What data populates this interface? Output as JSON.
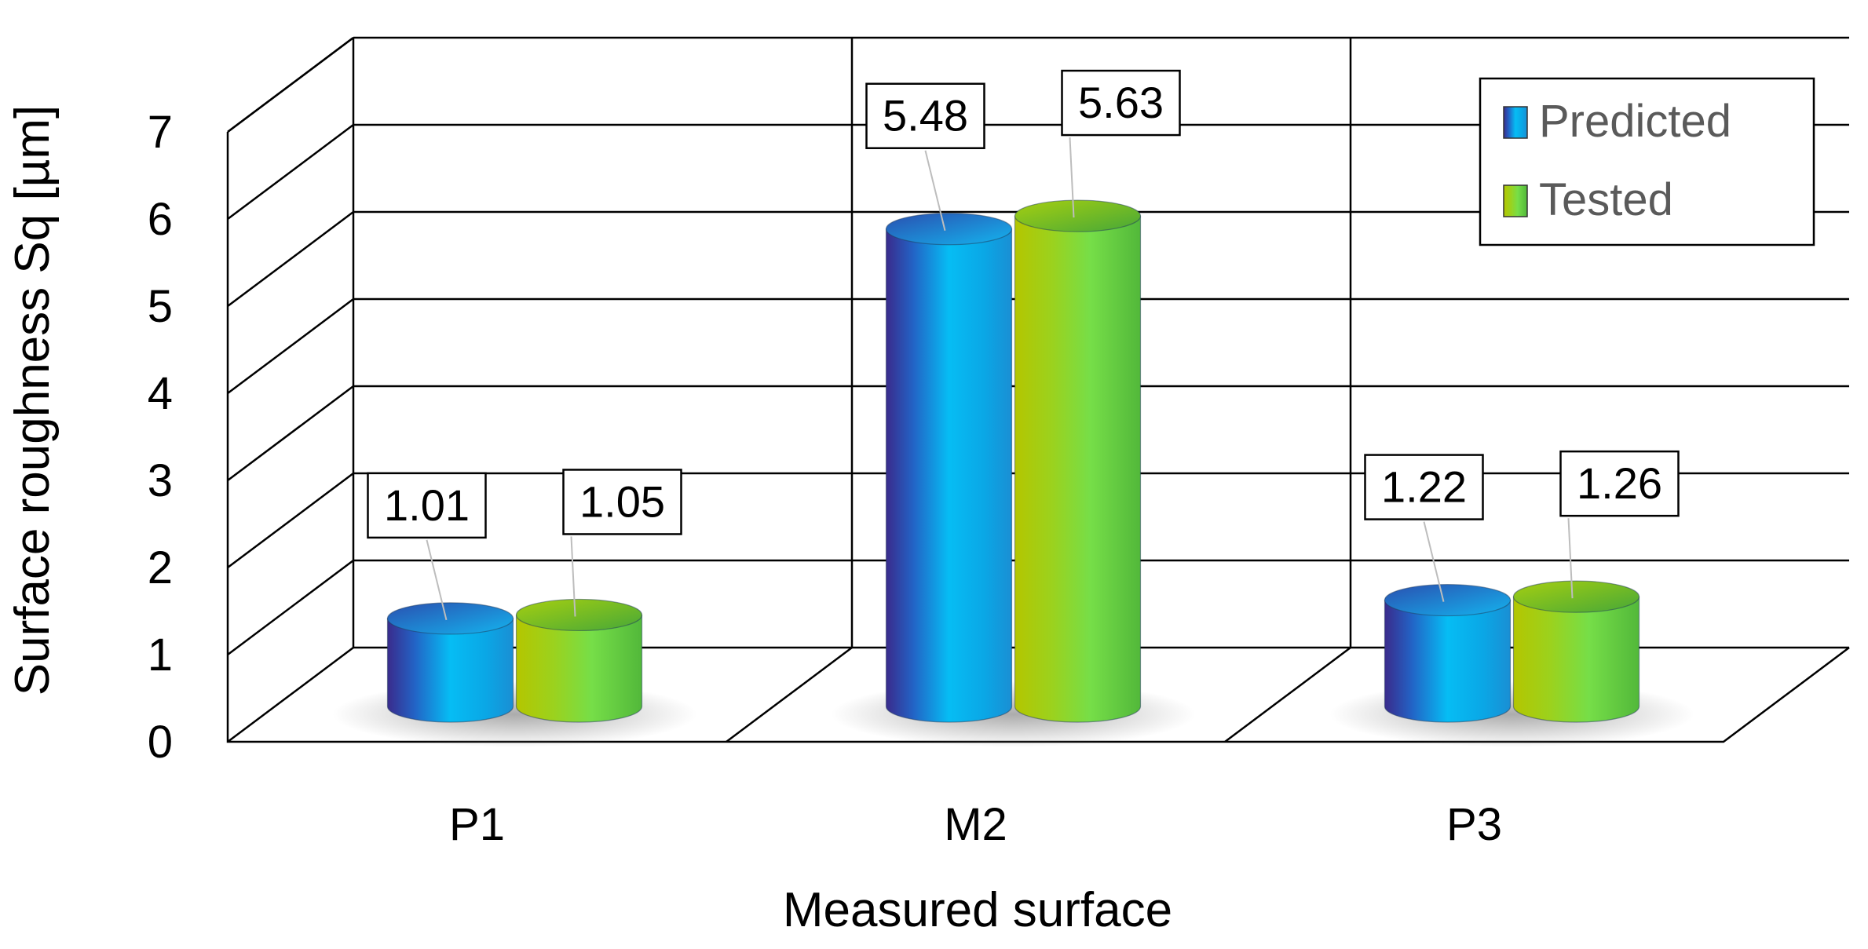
{
  "chart_data": {
    "type": "bar",
    "style": "3d-cylinder",
    "xlabel": "Measured surface",
    "ylabel": "Surface roughness Sq  [µm]",
    "categories": [
      "P1",
      "M2",
      "P3"
    ],
    "ylim": [
      0,
      7
    ],
    "yticks": [
      "0",
      "1",
      "2",
      "3",
      "4",
      "5",
      "6",
      "7"
    ],
    "grid": true,
    "legend_position": "top-right",
    "series": [
      {
        "name": "Predicted",
        "values": [
          1.01,
          5.48,
          1.22
        ],
        "labels": [
          "1.01",
          "5.48",
          "1.22"
        ],
        "color": "#1aa7e8",
        "dark": "#3a2b8c"
      },
      {
        "name": "Tested",
        "values": [
          1.05,
          5.63,
          1.26
        ],
        "labels": [
          "1.05",
          "5.63",
          "1.26"
        ],
        "color": "#7ddd44",
        "dark": "#a8c800"
      }
    ]
  }
}
